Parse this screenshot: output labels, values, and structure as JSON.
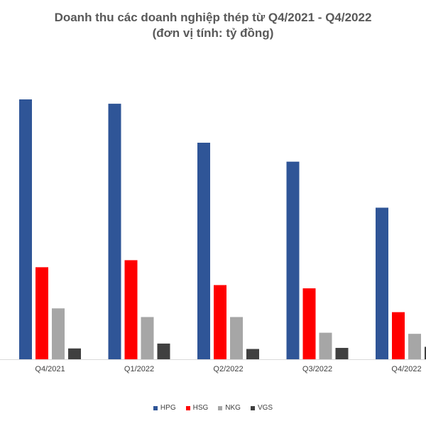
{
  "chart_data": {
    "type": "bar",
    "title": "Doanh thu các doanh nghiệp thép từ Q4/2021 - Q4/2022",
    "subtitle": "(đơn vị tính: tỷ đồng)",
    "categories": [
      "Q4/2021",
      "Q1/2022",
      "Q2/2022",
      "Q3/2022",
      "Q4/2022"
    ],
    "series": [
      {
        "name": "HPG",
        "color": "#2F5597",
        "values": [
          48000,
          47200,
          40000,
          36500,
          28000
        ]
      },
      {
        "name": "HSG",
        "color": "#FF0000",
        "values": [
          17000,
          18300,
          13700,
          13100,
          8700
        ]
      },
      {
        "name": "NKG",
        "color": "#A6A6A6",
        "values": [
          9400,
          7800,
          7800,
          4900,
          4700
        ]
      },
      {
        "name": "VGS",
        "color": "#404040",
        "values": [
          2000,
          2900,
          1900,
          2100,
          2300
        ]
      }
    ],
    "ylim": [
      0,
      50000
    ],
    "grid": false,
    "legend_position": "bottom"
  }
}
